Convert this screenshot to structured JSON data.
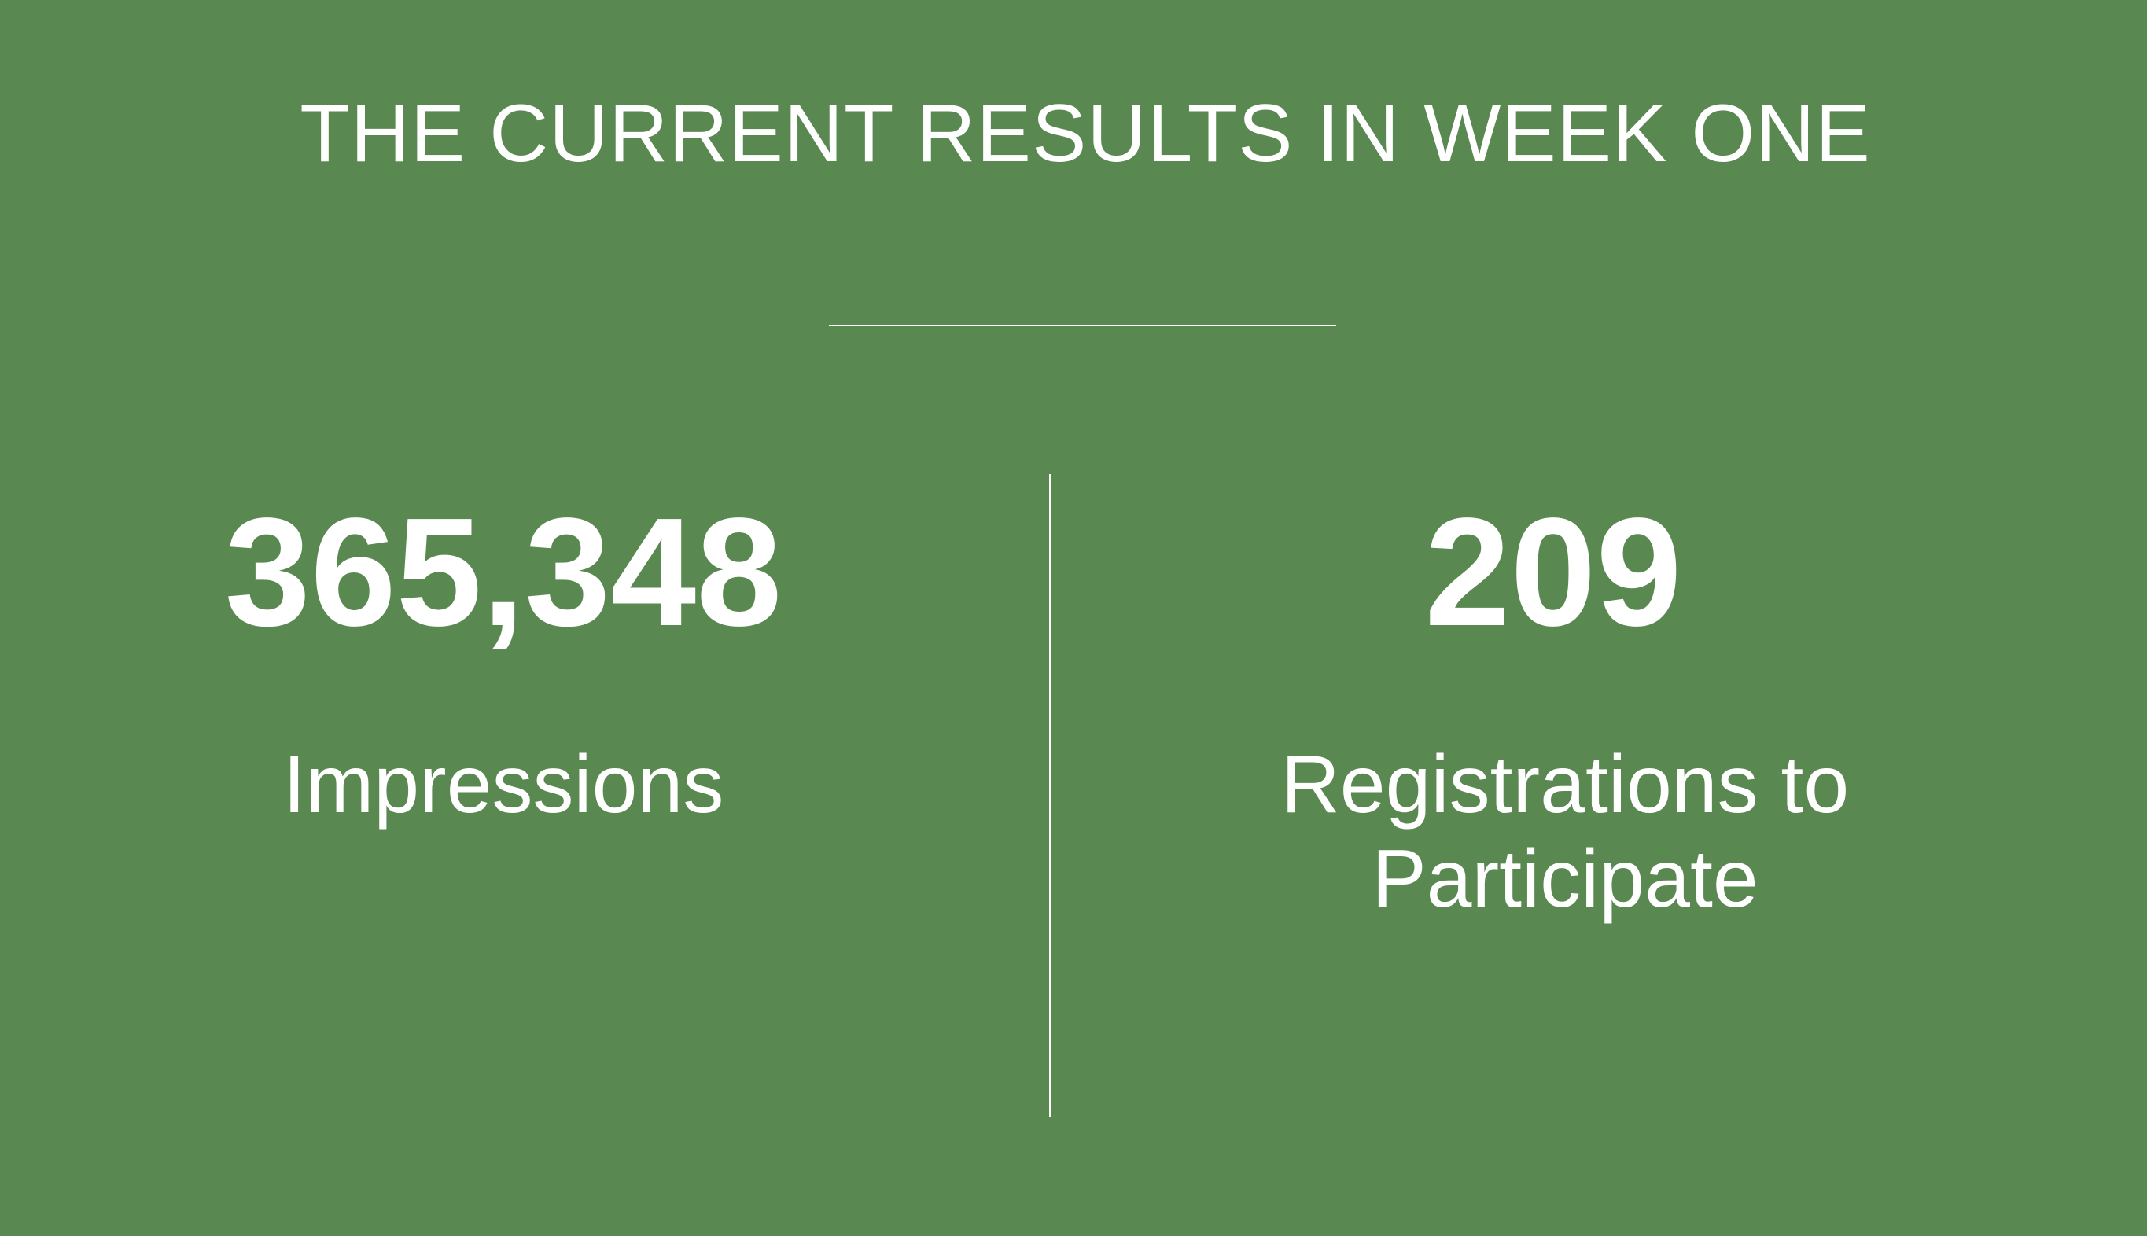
{
  "slide": {
    "background_color": "#5a8851",
    "text_color": "#ffffff",
    "title": "THE CURRENT RESULTS IN WEEK ONE",
    "stats": [
      {
        "value": "365,348",
        "label": "Impressions"
      },
      {
        "value": "209",
        "label": "Registrations to Participate"
      }
    ]
  }
}
